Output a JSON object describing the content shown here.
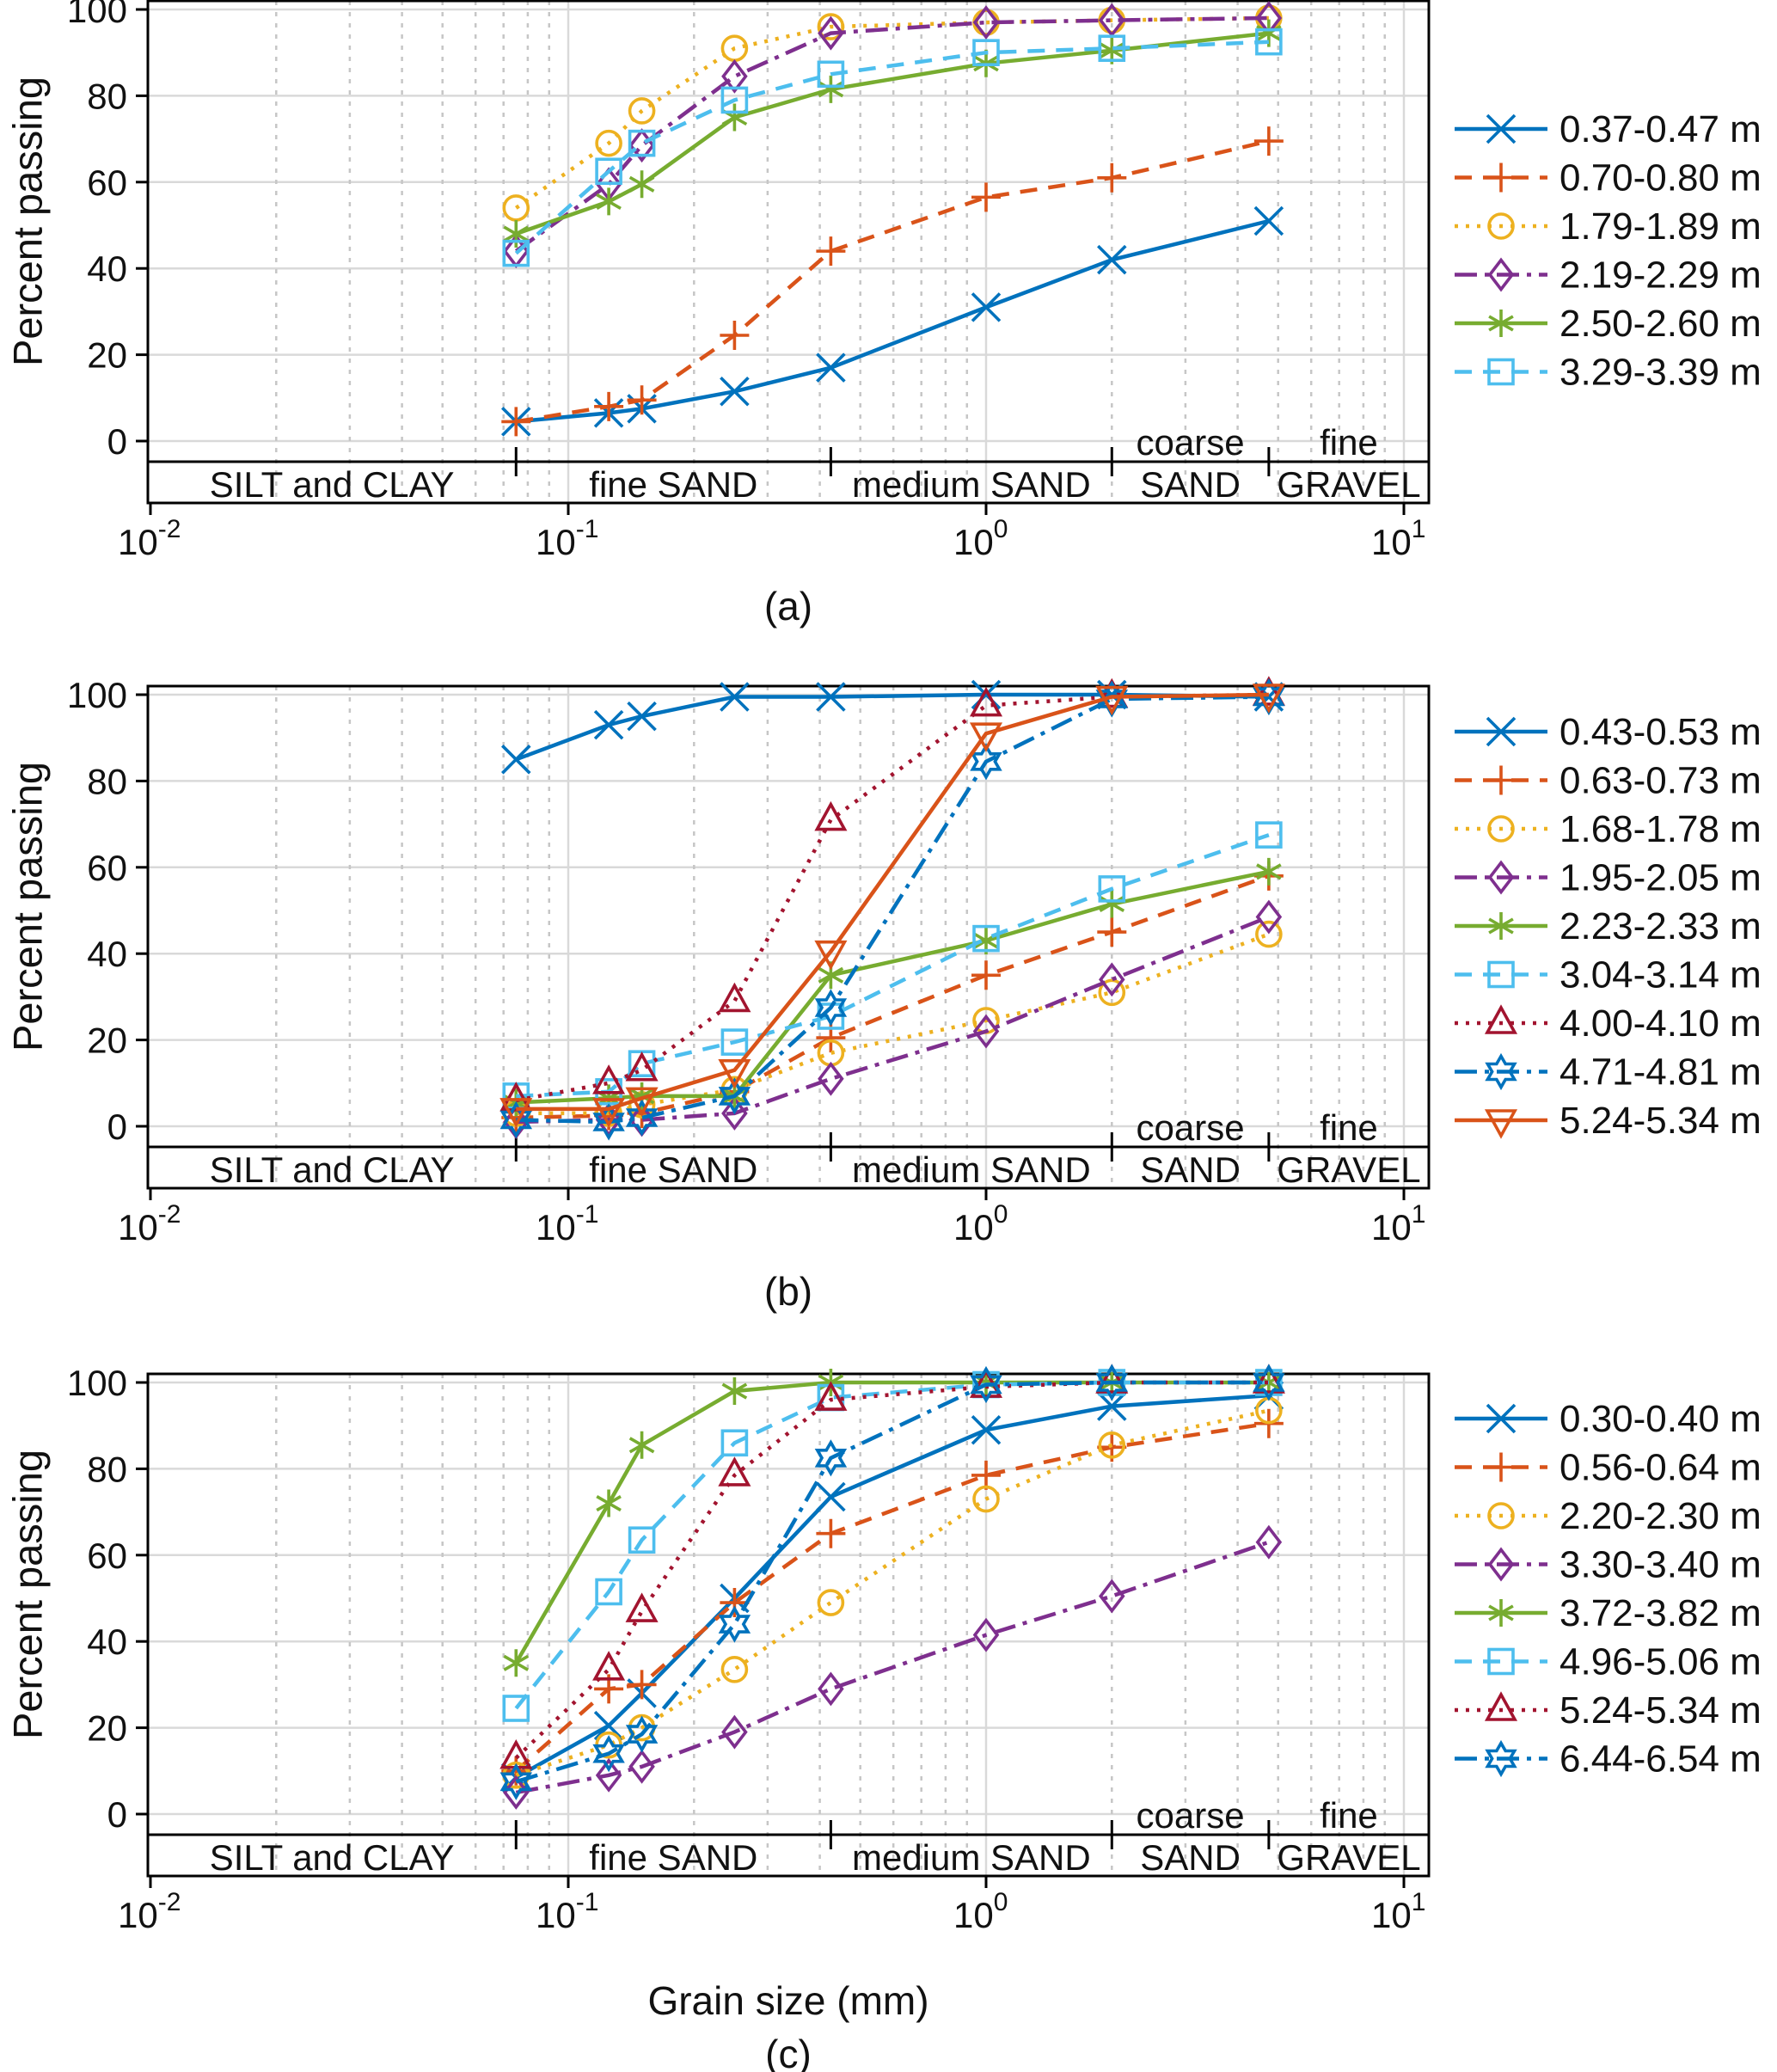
{
  "figure": {
    "ylabel": "Percent passing",
    "xlabel": "Grain size (mm)",
    "y_ticks": [
      0,
      20,
      40,
      60,
      80,
      100
    ],
    "x_ticks": [
      {
        "base": "10",
        "exp": "-2",
        "value": 0.01
      },
      {
        "base": "10",
        "exp": "-1",
        "value": 0.1
      },
      {
        "base": "10",
        "exp": "0",
        "value": 1
      },
      {
        "base": "10",
        "exp": "1",
        "value": 10
      }
    ],
    "band": {
      "boundaries": [
        0.075,
        0.425,
        2,
        4.75
      ],
      "segments": [
        {
          "lines": [
            "SILT and CLAY"
          ],
          "from": null,
          "to": 0.075
        },
        {
          "lines": [
            "fine SAND"
          ],
          "from": 0.075,
          "to": 0.425
        },
        {
          "lines": [
            "medium SAND"
          ],
          "from": 0.425,
          "to": 2
        },
        {
          "lines": [
            "coarse",
            "SAND"
          ],
          "from": 2,
          "to": 4.75
        },
        {
          "lines": [
            "fine",
            "GRAVEL"
          ],
          "from": 4.75,
          "to": null
        }
      ]
    },
    "palette": {
      "blue": "#0072BD",
      "orange": "#D95319",
      "yellow": "#EDB120",
      "purple": "#7E2F8E",
      "green": "#77AC30",
      "cyan": "#4DBEEE",
      "darkred": "#A2142F"
    },
    "grid": {
      "major": "#d9d9d9",
      "minor": "#c6c6c6"
    },
    "axis_color": "#000000"
  },
  "chart_data": [
    {
      "type": "line",
      "caption": "(a)",
      "x_scale": "log",
      "xlim": [
        0.01,
        11.5
      ],
      "ylim": [
        0,
        100
      ],
      "x": [
        0.075,
        0.125,
        0.15,
        0.25,
        0.425,
        1,
        2,
        4.75
      ],
      "series": [
        {
          "name": "0.37-0.47 m",
          "color": "blue",
          "line": "solid",
          "marker": "x",
          "values": [
            4.5,
            6.5,
            7.5,
            11.5,
            17,
            31,
            42,
            51
          ]
        },
        {
          "name": "0.70-0.80 m",
          "color": "orange",
          "line": "dashed",
          "marker": "plus",
          "values": [
            4.5,
            8,
            9.5,
            24.5,
            44,
            56.5,
            61,
            69.5
          ]
        },
        {
          "name": "1.79-1.89 m",
          "color": "yellow",
          "line": "dotted",
          "marker": "circle",
          "values": [
            54,
            69,
            76.5,
            91,
            96,
            97,
            97.5,
            98
          ]
        },
        {
          "name": "2.19-2.29 m",
          "color": "purple",
          "line": "dashdot",
          "marker": "diamond",
          "values": [
            44,
            59.5,
            68.5,
            84.5,
            94.5,
            97,
            97.5,
            98
          ]
        },
        {
          "name": "2.50-2.60 m",
          "color": "green",
          "line": "solid",
          "marker": "asterisk",
          "values": [
            48,
            55.5,
            59.5,
            75,
            81.5,
            87.5,
            90.5,
            94.5
          ]
        },
        {
          "name": "3.29-3.39 m",
          "color": "cyan",
          "line": "dashed",
          "marker": "square",
          "values": [
            43.5,
            62.5,
            69,
            79,
            85,
            90,
            91,
            92.5
          ]
        }
      ]
    },
    {
      "type": "line",
      "caption": "(b)",
      "x_scale": "log",
      "xlim": [
        0.01,
        11.5
      ],
      "ylim": [
        0,
        100
      ],
      "x": [
        0.075,
        0.125,
        0.15,
        0.25,
        0.425,
        1,
        2,
        4.75
      ],
      "series": [
        {
          "name": "0.43-0.53 m",
          "color": "blue",
          "line": "solid",
          "marker": "x",
          "values": [
            85,
            93,
            95,
            99.5,
            99.5,
            100,
            100,
            99.5
          ]
        },
        {
          "name": "0.63-0.73 m",
          "color": "orange",
          "line": "dashed",
          "marker": "plus",
          "values": [
            2,
            2.5,
            3,
            8,
            20.5,
            35,
            45,
            58
          ]
        },
        {
          "name": "1.68-1.78 m",
          "color": "yellow",
          "line": "dotted",
          "marker": "circle",
          "values": [
            3,
            3,
            5,
            8.5,
            17,
            24.5,
            31,
            44.5
          ]
        },
        {
          "name": "1.95-2.05 m",
          "color": "purple",
          "line": "dashdot",
          "marker": "diamond",
          "values": [
            1,
            1.5,
            1.5,
            3,
            11,
            22,
            34,
            48.5
          ]
        },
        {
          "name": "2.23-2.33 m",
          "color": "green",
          "line": "solid",
          "marker": "asterisk",
          "values": [
            5.5,
            6.5,
            7,
            7,
            35,
            43,
            51.5,
            59
          ]
        },
        {
          "name": "3.04-3.14 m",
          "color": "cyan",
          "line": "dashed",
          "marker": "square",
          "values": [
            7,
            8,
            14.5,
            19.5,
            25.5,
            43.5,
            55,
            67.5
          ]
        },
        {
          "name": "4.00-4.10 m",
          "color": "darkred",
          "line": "dotted",
          "marker": "triangle-up",
          "values": [
            6,
            10,
            13,
            29,
            71,
            97.5,
            99.5,
            100
          ]
        },
        {
          "name": "4.71-4.81 m",
          "color": "blue",
          "line": "dashdot",
          "marker": "hexagram",
          "values": [
            1.5,
            1,
            2,
            7,
            27.5,
            84.5,
            99,
            99.5
          ]
        },
        {
          "name": "5.24-5.34 m",
          "color": "orange",
          "line": "solid",
          "marker": "triangle-down",
          "values": [
            4,
            4,
            6.5,
            13,
            40.5,
            91,
            99.5,
            100
          ]
        }
      ]
    },
    {
      "type": "line",
      "caption": "(c)",
      "x_scale": "log",
      "xlim": [
        0.01,
        11.5
      ],
      "ylim": [
        0,
        100
      ],
      "x": [
        0.075,
        0.125,
        0.15,
        0.25,
        0.425,
        1,
        2,
        4.75
      ],
      "series": [
        {
          "name": "0.30-0.40 m",
          "color": "blue",
          "line": "solid",
          "marker": "x",
          "values": [
            8.5,
            20.5,
            28,
            50,
            73.5,
            89,
            94.5,
            97
          ]
        },
        {
          "name": "0.56-0.64 m",
          "color": "orange",
          "line": "dashed",
          "marker": "plus",
          "values": [
            10,
            29,
            30,
            49,
            65,
            78.5,
            85,
            90.5
          ]
        },
        {
          "name": "2.20-2.30 m",
          "color": "yellow",
          "line": "dotted",
          "marker": "circle",
          "values": [
            9,
            16,
            20,
            33.5,
            49,
            73,
            85.5,
            93.5
          ]
        },
        {
          "name": "3.30-3.40 m",
          "color": "purple",
          "line": "dashdot",
          "marker": "diamond",
          "values": [
            5,
            9,
            11,
            19,
            29,
            41.5,
            50.5,
            63
          ]
        },
        {
          "name": "3.72-3.82 m",
          "color": "green",
          "line": "solid",
          "marker": "asterisk",
          "values": [
            35,
            72,
            85.5,
            98,
            100,
            100,
            100,
            100
          ]
        },
        {
          "name": "4.96-5.06 m",
          "color": "cyan",
          "line": "dashed",
          "marker": "square",
          "values": [
            24.5,
            51.5,
            63.5,
            86,
            96.5,
            99.5,
            100,
            100
          ]
        },
        {
          "name": "5.24-5.34 m",
          "color": "darkred",
          "line": "dotted",
          "marker": "triangle-up",
          "values": [
            13,
            33.5,
            47,
            78.5,
            96,
            99,
            100,
            100
          ]
        },
        {
          "name": "6.44-6.54 m",
          "color": "blue",
          "line": "dashdot",
          "marker": "hexagram",
          "values": [
            7.5,
            14,
            18.5,
            44,
            82.5,
            99.5,
            100,
            100
          ]
        }
      ]
    }
  ]
}
